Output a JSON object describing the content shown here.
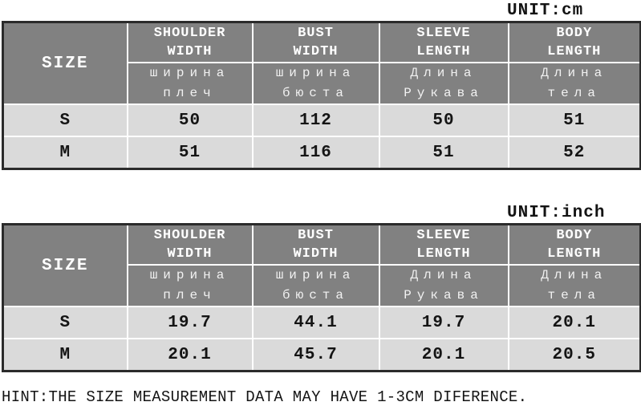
{
  "page": {
    "hint": "HINT:THE SIZE MEASUREMENT DATA MAY HAVE 1-3CM DIFERENCE."
  },
  "columns": {
    "size_label": "SIZE",
    "headers": [
      {
        "en_line1": "SHOULDER",
        "en_line2": "WIDTH",
        "ru_line1": "ширина",
        "ru_line2": "плеч"
      },
      {
        "en_line1": "BUST",
        "en_line2": "WIDTH",
        "ru_line1": "ширина",
        "ru_line2": "бюста"
      },
      {
        "en_line1": "SLEEVE",
        "en_line2": "LENGTH",
        "ru_line1": "Длина",
        "ru_line2": "Рукава"
      },
      {
        "en_line1": "BODY",
        "en_line2": "LENGTH",
        "ru_line1": "Длина",
        "ru_line2": "тела"
      }
    ]
  },
  "tables": [
    {
      "unit_label": "UNIT:cm",
      "rows": [
        {
          "size": "S",
          "values": [
            "50",
            "112",
            "50",
            "51"
          ]
        },
        {
          "size": "M",
          "values": [
            "51",
            "116",
            "51",
            "52"
          ]
        }
      ]
    },
    {
      "unit_label": "UNIT:inch",
      "rows": [
        {
          "size": "S",
          "values": [
            "19.7",
            "44.1",
            "19.7",
            "20.1"
          ]
        },
        {
          "size": "M",
          "values": [
            "20.1",
            "45.7",
            "20.1",
            "20.5"
          ]
        }
      ]
    }
  ],
  "colors": {
    "header_bg": "#818181",
    "data_row_bg": "#dadada",
    "inner_border": "#ffffff",
    "outer_border": "#2b2b2b",
    "header_text": "#ffffff",
    "data_text": "#141414"
  }
}
